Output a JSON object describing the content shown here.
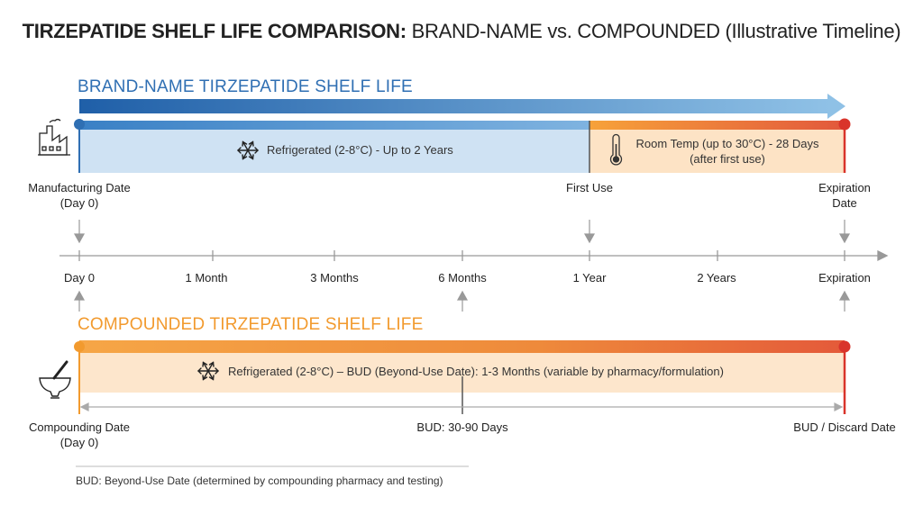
{
  "title": {
    "bold": "TIRZEPATIDE SHELF LIFE COMPARISON:",
    "rest": "BRAND-NAME vs. COMPOUNDED (Illustrative Timeline)"
  },
  "brand": {
    "section_title": "BRAND-NAME TIRZEPATIDE SHELF LIFE",
    "refrigerated_text": "Refrigerated (2-8°C) - Up to 2 Years",
    "room_temp_line1": "Room Temp (up to 30°C) - 28 Days",
    "room_temp_line2": "(after first use)",
    "manufacturing_line1": "Manufacturing Date",
    "manufacturing_line2": "(Day 0)",
    "first_use": "First Use",
    "expiration_line1": "Expiration",
    "expiration_line2": "Date"
  },
  "timeline": {
    "ticks": [
      "Day 0",
      "1 Month",
      "3 Months",
      "6 Months",
      "1 Year",
      "2 Years",
      "Expiration"
    ]
  },
  "compounded": {
    "section_title": "COMPOUNDED TIRZEPATIDE SHELF LIFE",
    "refrigerated_text": "Refrigerated (2-8°C) – BUD (Beyond-Use Date): 1-3 Months (variable by pharmacy/formulation)",
    "compounding_line1": "Compounding Date",
    "compounding_line2": "(Day 0)",
    "bud_mid": "BUD: 30-90 Days",
    "discard": "BUD / Discard Date"
  },
  "footnote": "BUD: Beyond-Use Date (determined by compounding pharmacy and testing)",
  "colors": {
    "brand_blue": "#2f6fb3",
    "brand_light": "#cfe2f3",
    "orange": "#f29a2e",
    "red_end": "#d9342b"
  },
  "icons": [
    "factory-icon",
    "snowflake-icon",
    "thermometer-icon",
    "mortar-pestle-icon"
  ]
}
